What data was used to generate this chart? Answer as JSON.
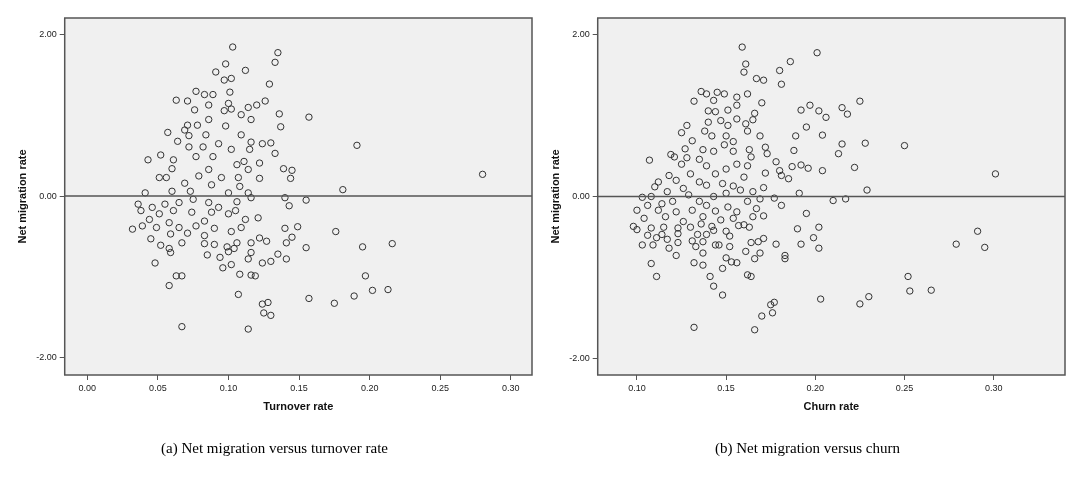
{
  "chart_data": [
    {
      "type": "scatter",
      "xlabel": "Turnover rate",
      "ylabel": "Net migration rate",
      "color": "#333333",
      "marker": "circle",
      "grid": false,
      "legend": false,
      "xlim": [
        -0.016,
        0.315
      ],
      "ylim": [
        -2.22,
        2.21
      ],
      "xticks": [
        {
          "value": 0,
          "label": "0.00"
        },
        {
          "value": 0.05,
          "label": "0.05"
        },
        {
          "value": 0.1,
          "label": "0.10"
        },
        {
          "value": 0.15,
          "label": "0.15"
        },
        {
          "value": 0.2,
          "label": "0.20"
        },
        {
          "value": 0.25,
          "label": "0.25"
        },
        {
          "value": 0.3,
          "label": "0.30"
        }
      ],
      "yticks": [
        {
          "value": -2,
          "label": "-2.00"
        },
        {
          "value": 0,
          "label": "0.00"
        },
        {
          "value": 2,
          "label": "2.00"
        }
      ],
      "ref_lines": [
        {
          "axis": "y",
          "value": 0,
          "color": "#555555"
        }
      ],
      "annotations": [
        "(a) Net migration versus turnover rate"
      ],
      "x": [
        0.103,
        0.135,
        0.133,
        0.098,
        0.091,
        0.112,
        0.097,
        0.102,
        0.129,
        0.077,
        0.101,
        0.083,
        0.089,
        0.063,
        0.071,
        0.126,
        0.1,
        0.086,
        0.12,
        0.114,
        0.097,
        0.102,
        0.076,
        0.157,
        0.136,
        0.109,
        0.116,
        0.086,
        0.137,
        0.071,
        0.078,
        0.098,
        0.057,
        0.069,
        0.084,
        0.109,
        0.072,
        0.191,
        0.116,
        0.124,
        0.13,
        0.064,
        0.072,
        0.082,
        0.093,
        0.102,
        0.115,
        0.133,
        0.052,
        0.043,
        0.089,
        0.077,
        0.061,
        0.111,
        0.122,
        0.28,
        0.139,
        0.145,
        0.06,
        0.086,
        0.106,
        0.114,
        0.051,
        0.056,
        0.079,
        0.095,
        0.107,
        0.122,
        0.144,
        0.069,
        0.088,
        0.108,
        0.181,
        0.041,
        0.06,
        0.073,
        0.1,
        0.114,
        0.14,
        0.155,
        0.116,
        0.036,
        0.046,
        0.055,
        0.065,
        0.075,
        0.086,
        0.093,
        0.106,
        0.143,
        0.038,
        0.051,
        0.061,
        0.074,
        0.088,
        0.1,
        0.105,
        0.044,
        0.058,
        0.083,
        0.121,
        0.112,
        0.039,
        0.032,
        0.049,
        0.065,
        0.077,
        0.09,
        0.102,
        0.109,
        0.14,
        0.149,
        0.176,
        0.045,
        0.059,
        0.071,
        0.083,
        0.116,
        0.122,
        0.127,
        0.145,
        0.141,
        0.052,
        0.067,
        0.083,
        0.09,
        0.099,
        0.106,
        0.216,
        0.195,
        0.155,
        0.058,
        0.059,
        0.085,
        0.1,
        0.104,
        0.116,
        0.094,
        0.114,
        0.135,
        0.141,
        0.124,
        0.13,
        0.048,
        0.096,
        0.102,
        0.063,
        0.067,
        0.108,
        0.116,
        0.119,
        0.197,
        0.058,
        0.202,
        0.213,
        0.189,
        0.107,
        0.157,
        0.175,
        0.124,
        0.128,
        0.125,
        0.13,
        0.067,
        0.114
      ],
      "values": [
        1.85,
        1.78,
        1.66,
        1.64,
        1.54,
        1.56,
        1.44,
        1.46,
        1.39,
        1.3,
        1.29,
        1.26,
        1.26,
        1.19,
        1.18,
        1.18,
        1.15,
        1.13,
        1.13,
        1.1,
        1.06,
        1.08,
        1.07,
        0.98,
        1.02,
        1.01,
        0.95,
        0.95,
        0.86,
        0.88,
        0.88,
        0.87,
        0.79,
        0.82,
        0.76,
        0.76,
        0.75,
        0.63,
        0.67,
        0.65,
        0.66,
        0.68,
        0.61,
        0.61,
        0.65,
        0.58,
        0.58,
        0.53,
        0.51,
        0.45,
        0.49,
        0.49,
        0.45,
        0.43,
        0.41,
        0.27,
        0.34,
        0.32,
        0.34,
        0.33,
        0.39,
        0.33,
        0.23,
        0.23,
        0.25,
        0.23,
        0.23,
        0.22,
        0.22,
        0.16,
        0.14,
        0.12,
        0.08,
        0.04,
        0.06,
        0.06,
        0.04,
        0.04,
        -0.02,
        -0.05,
        -0.02,
        -0.1,
        -0.14,
        -0.1,
        -0.08,
        -0.04,
        -0.08,
        -0.14,
        -0.07,
        -0.12,
        -0.18,
        -0.22,
        -0.18,
        -0.2,
        -0.2,
        -0.22,
        -0.18,
        -0.29,
        -0.33,
        -0.31,
        -0.27,
        -0.29,
        -0.37,
        -0.41,
        -0.39,
        -0.39,
        -0.37,
        -0.4,
        -0.44,
        -0.39,
        -0.4,
        -0.38,
        -0.44,
        -0.53,
        -0.47,
        -0.46,
        -0.49,
        -0.58,
        -0.52,
        -0.56,
        -0.51,
        -0.58,
        -0.61,
        -0.58,
        -0.59,
        -0.6,
        -0.63,
        -0.58,
        -0.59,
        -0.63,
        -0.64,
        -0.65,
        -0.7,
        -0.73,
        -0.69,
        -0.65,
        -0.7,
        -0.76,
        -0.78,
        -0.72,
        -0.78,
        -0.83,
        -0.81,
        -0.83,
        -0.89,
        -0.85,
        -0.99,
        -0.99,
        -0.97,
        -0.98,
        -0.99,
        -0.99,
        -1.11,
        -1.17,
        -1.16,
        -1.24,
        -1.22,
        -1.27,
        -1.33,
        -1.34,
        -1.32,
        -1.45,
        -1.48,
        -1.62,
        -1.65
      ]
    },
    {
      "type": "scatter",
      "xlabel": "Churn rate",
      "ylabel": "Net migration rate",
      "color": "#333333",
      "marker": "circle",
      "grid": false,
      "legend": false,
      "xlim": [
        0.078,
        0.34
      ],
      "ylim": [
        -2.21,
        2.21
      ],
      "xticks": [
        {
          "value": 0.1,
          "label": "0.10"
        },
        {
          "value": 0.15,
          "label": "0.15"
        },
        {
          "value": 0.2,
          "label": "0.20"
        },
        {
          "value": 0.25,
          "label": "0.25"
        },
        {
          "value": 0.3,
          "label": "0.30"
        }
      ],
      "yticks": [
        {
          "value": -2,
          "label": "-2.00"
        },
        {
          "value": 0,
          "label": "0.00"
        },
        {
          "value": 2,
          "label": "2.00"
        }
      ],
      "ref_lines": [
        {
          "axis": "y",
          "value": 0,
          "color": "#555555"
        }
      ],
      "annotations": [
        "(b) Net migration versus churn"
      ],
      "x": [
        0.159,
        0.201,
        0.161,
        0.186,
        0.16,
        0.18,
        0.167,
        0.171,
        0.181,
        0.136,
        0.139,
        0.145,
        0.149,
        0.156,
        0.162,
        0.132,
        0.143,
        0.17,
        0.225,
        0.156,
        0.192,
        0.197,
        0.202,
        0.215,
        0.14,
        0.144,
        0.151,
        0.166,
        0.218,
        0.206,
        0.156,
        0.165,
        0.147,
        0.14,
        0.161,
        0.151,
        0.128,
        0.195,
        0.125,
        0.138,
        0.162,
        0.189,
        0.169,
        0.204,
        0.142,
        0.15,
        0.131,
        0.154,
        0.228,
        0.215,
        0.25,
        0.149,
        0.127,
        0.137,
        0.143,
        0.154,
        0.163,
        0.172,
        0.188,
        0.173,
        0.213,
        0.119,
        0.121,
        0.107,
        0.128,
        0.135,
        0.164,
        0.139,
        0.178,
        0.125,
        0.156,
        0.162,
        0.187,
        0.192,
        0.196,
        0.222,
        0.15,
        0.18,
        0.204,
        0.301,
        0.118,
        0.13,
        0.144,
        0.172,
        0.181,
        0.185,
        0.112,
        0.122,
        0.135,
        0.148,
        0.16,
        0.171,
        0.11,
        0.126,
        0.139,
        0.154,
        0.158,
        0.165,
        0.191,
        0.229,
        0.103,
        0.108,
        0.117,
        0.129,
        0.143,
        0.15,
        0.177,
        0.21,
        0.217,
        0.162,
        0.169,
        0.181,
        0.106,
        0.114,
        0.12,
        0.135,
        0.139,
        0.151,
        0.1,
        0.112,
        0.122,
        0.131,
        0.144,
        0.156,
        0.167,
        0.195,
        0.104,
        0.116,
        0.126,
        0.137,
        0.147,
        0.154,
        0.16,
        0.171,
        0.165,
        0.098,
        0.1,
        0.108,
        0.115,
        0.123,
        0.13,
        0.136,
        0.142,
        0.15,
        0.157,
        0.163,
        0.19,
        0.202,
        0.291,
        0.106,
        0.114,
        0.117,
        0.123,
        0.134,
        0.139,
        0.143,
        0.152,
        0.171,
        0.199,
        0.111,
        0.131,
        0.137,
        0.164,
        0.168,
        0.178,
        0.192,
        0.279,
        0.103,
        0.109,
        0.123,
        0.133,
        0.144,
        0.146,
        0.152,
        0.202,
        0.295,
        0.118,
        0.161,
        0.137,
        0.15,
        0.166,
        0.169,
        0.183,
        0.183,
        0.122,
        0.132,
        0.137,
        0.153,
        0.156,
        0.108,
        0.148,
        0.111,
        0.141,
        0.162,
        0.164,
        0.252,
        0.143,
        0.253,
        0.265,
        0.148,
        0.203,
        0.23,
        0.225,
        0.175,
        0.177,
        0.176,
        0.17,
        0.132,
        0.166
      ],
      "values": [
        1.85,
        1.78,
        1.64,
        1.67,
        1.54,
        1.56,
        1.46,
        1.44,
        1.39,
        1.3,
        1.27,
        1.29,
        1.27,
        1.23,
        1.27,
        1.18,
        1.19,
        1.16,
        1.18,
        1.13,
        1.07,
        1.13,
        1.06,
        1.1,
        1.06,
        1.05,
        1.07,
        1.03,
        1.02,
        0.98,
        0.96,
        0.95,
        0.94,
        0.92,
        0.9,
        0.88,
        0.88,
        0.86,
        0.79,
        0.81,
        0.81,
        0.75,
        0.75,
        0.76,
        0.75,
        0.75,
        0.69,
        0.68,
        0.66,
        0.65,
        0.63,
        0.64,
        0.59,
        0.58,
        0.56,
        0.56,
        0.58,
        0.61,
        0.57,
        0.53,
        0.53,
        0.52,
        0.49,
        0.45,
        0.48,
        0.46,
        0.49,
        0.38,
        0.43,
        0.4,
        0.4,
        0.38,
        0.37,
        0.39,
        0.35,
        0.36,
        0.34,
        0.32,
        0.32,
        0.28,
        0.26,
        0.28,
        0.28,
        0.29,
        0.26,
        0.22,
        0.18,
        0.2,
        0.18,
        0.16,
        0.24,
        0.11,
        0.12,
        0.1,
        0.14,
        0.13,
        0.08,
        0.06,
        0.04,
        0.08,
        -0.01,
        0.0,
        0.06,
        0.02,
        0.0,
        0.04,
        -0.02,
        -0.05,
        -0.03,
        -0.06,
        -0.03,
        -0.11,
        -0.11,
        -0.09,
        -0.06,
        -0.06,
        -0.11,
        -0.13,
        -0.17,
        -0.17,
        -0.19,
        -0.17,
        -0.18,
        -0.19,
        -0.15,
        -0.21,
        -0.27,
        -0.25,
        -0.31,
        -0.25,
        -0.29,
        -0.27,
        -0.35,
        -0.24,
        -0.25,
        -0.37,
        -0.41,
        -0.39,
        -0.38,
        -0.39,
        -0.38,
        -0.34,
        -0.37,
        -0.43,
        -0.36,
        -0.38,
        -0.4,
        -0.38,
        -0.43,
        -0.48,
        -0.47,
        -0.53,
        -0.46,
        -0.47,
        -0.47,
        -0.42,
        -0.49,
        -0.52,
        -0.51,
        -0.51,
        -0.55,
        -0.56,
        -0.57,
        -0.56,
        -0.59,
        -0.59,
        -0.59,
        -0.6,
        -0.6,
        -0.57,
        -0.62,
        -0.6,
        -0.6,
        -0.62,
        -0.64,
        -0.63,
        -0.64,
        -0.68,
        -0.7,
        -0.76,
        -0.77,
        -0.7,
        -0.73,
        -0.77,
        -0.73,
        -0.82,
        -0.85,
        -0.81,
        -0.82,
        -0.83,
        -0.89,
        -0.99,
        -0.99,
        -0.97,
        -0.99,
        -0.99,
        -1.11,
        -1.17,
        -1.16,
        -1.22,
        -1.27,
        -1.24,
        -1.33,
        -1.34,
        -1.31,
        -1.44,
        -1.48,
        -1.62,
        -1.65
      ]
    }
  ]
}
